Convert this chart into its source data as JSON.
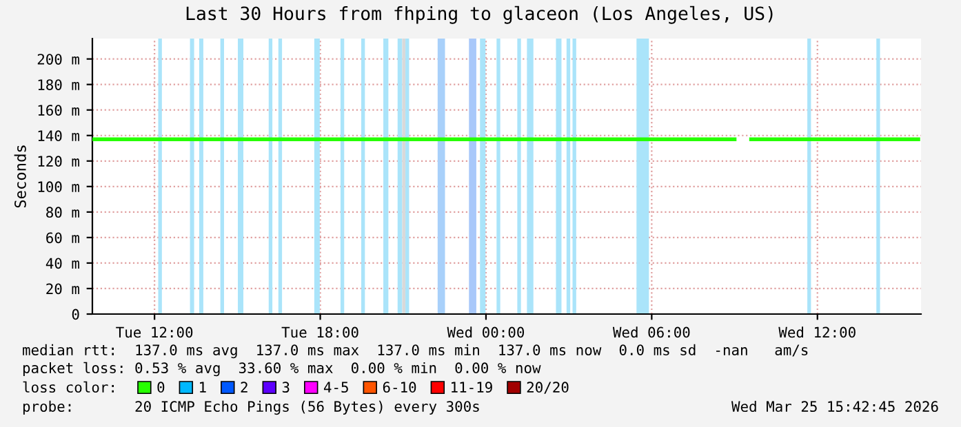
{
  "chart_data": {
    "type": "line",
    "title": "Last 30 Hours from fhping to glaceon (Los Angeles, US)",
    "ylabel": "Seconds",
    "xlim": [
      "2026-03-24T09:45",
      "2026-03-25T15:45"
    ],
    "xticks": [
      {
        "value": "2026-03-24T12:00",
        "label": "Tue 12:00"
      },
      {
        "value": "2026-03-24T18:00",
        "label": "Tue 18:00"
      },
      {
        "value": "2026-03-25T00:00",
        "label": "Wed 00:00"
      },
      {
        "value": "2026-03-25T06:00",
        "label": "Wed 06:00"
      },
      {
        "value": "2026-03-25T12:00",
        "label": "Wed 12:00"
      }
    ],
    "ylim": [
      0,
      216
    ],
    "yticks": [
      0,
      {
        "value": 20,
        "label": "20 m"
      },
      {
        "value": 40,
        "label": "40 m"
      },
      {
        "value": 60,
        "label": "60 m"
      },
      {
        "value": 80,
        "label": "80 m"
      },
      {
        "value": 100,
        "label": "100 m"
      },
      {
        "value": 120,
        "label": "120 m"
      },
      {
        "value": 140,
        "label": "140 m"
      },
      {
        "value": 160,
        "label": "160 m"
      },
      {
        "value": 180,
        "label": "180 m"
      },
      {
        "value": 200,
        "label": "200 m"
      }
    ],
    "grid": true,
    "legend": "bottom",
    "legend_title": "loss color:",
    "series": [
      {
        "name": "0",
        "color": "#26ff00",
        "x": [
          "2026-03-24T09:45",
          "2026-03-25T09:00",
          "2026-03-25T09:18",
          "2026-03-25T09:36",
          "2026-03-25T15:39"
        ],
        "values": [
          137,
          137,
          null,
          137,
          137
        ]
      },
      {
        "name": "1",
        "color": "#00b8ff"
      },
      {
        "name": "2",
        "color": "#0059ff"
      },
      {
        "name": "3",
        "color": "#5e00ff"
      },
      {
        "name": "4-5",
        "color": "#ff00ff"
      },
      {
        "name": "6-10",
        "color": "#ff5500"
      },
      {
        "name": "11-19",
        "color": "#ff0000"
      },
      {
        "name": "20/20",
        "color": "#a10000"
      }
    ],
    "bands": [
      {
        "axis": "x",
        "from": "2026-03-24T12:08",
        "to": "2026-03-24T12:16",
        "color": "#aae4fa"
      },
      {
        "axis": "x",
        "from": "2026-03-24T13:17",
        "to": "2026-03-24T13:26",
        "color": "#aae4fa"
      },
      {
        "axis": "x",
        "from": "2026-03-24T13:37",
        "to": "2026-03-24T13:46",
        "color": "#aae4fa"
      },
      {
        "axis": "x",
        "from": "2026-03-24T14:23",
        "to": "2026-03-24T14:31",
        "color": "#aae4fa"
      },
      {
        "axis": "x",
        "from": "2026-03-24T15:01",
        "to": "2026-03-24T15:13",
        "color": "#aae4fa"
      },
      {
        "axis": "x",
        "from": "2026-03-24T16:08",
        "to": "2026-03-24T16:16",
        "color": "#aae4fa"
      },
      {
        "axis": "x",
        "from": "2026-03-24T16:29",
        "to": "2026-03-24T16:37",
        "color": "#aae4fa"
      },
      {
        "axis": "x",
        "from": "2026-03-24T17:47",
        "to": "2026-03-24T17:59",
        "color": "#aae4fa"
      },
      {
        "axis": "x",
        "from": "2026-03-24T18:44",
        "to": "2026-03-24T18:52",
        "color": "#aae4fa"
      },
      {
        "axis": "x",
        "from": "2026-03-24T19:29",
        "to": "2026-03-24T19:37",
        "color": "#aae4fa"
      },
      {
        "axis": "x",
        "from": "2026-03-24T20:17",
        "to": "2026-03-24T20:28",
        "color": "#aae4fa"
      },
      {
        "axis": "x",
        "from": "2026-03-24T20:48",
        "to": "2026-03-24T20:58",
        "color": "#aae4fa"
      },
      {
        "axis": "x",
        "from": "2026-03-24T20:58",
        "to": "2026-03-24T21:05",
        "color": "#d9d9d9"
      },
      {
        "axis": "x",
        "from": "2026-03-24T21:05",
        "to": "2026-03-24T21:13",
        "color": "#aae4fa"
      },
      {
        "axis": "x",
        "from": "2026-03-24T22:15",
        "to": "2026-03-24T22:31",
        "color": "#a8d0fa"
      },
      {
        "axis": "x",
        "from": "2026-03-24T23:23",
        "to": "2026-03-24T23:39",
        "color": "#a8c8fa"
      },
      {
        "axis": "x",
        "from": "2026-03-24T23:47",
        "to": "2026-03-24T23:59",
        "color": "#aae4fa"
      },
      {
        "axis": "x",
        "from": "2026-03-25T00:23",
        "to": "2026-03-25T00:31",
        "color": "#aae4fa"
      },
      {
        "axis": "x",
        "from": "2026-03-25T01:08",
        "to": "2026-03-25T01:16",
        "color": "#aae4fa"
      },
      {
        "axis": "x",
        "from": "2026-03-25T01:29",
        "to": "2026-03-25T01:43",
        "color": "#aae4fa"
      },
      {
        "axis": "x",
        "from": "2026-03-25T02:32",
        "to": "2026-03-25T02:44",
        "color": "#aae4fa"
      },
      {
        "axis": "x",
        "from": "2026-03-25T02:55",
        "to": "2026-03-25T03:03",
        "color": "#aae4fa"
      },
      {
        "axis": "x",
        "from": "2026-03-25T03:08",
        "to": "2026-03-25T03:16",
        "color": "#aae4fa"
      },
      {
        "axis": "x",
        "from": "2026-03-25T05:27",
        "to": "2026-03-25T05:54",
        "color": "#aae4fa"
      },
      {
        "axis": "x",
        "from": "2026-03-25T11:38",
        "to": "2026-03-25T11:46",
        "color": "#aae4fa"
      },
      {
        "axis": "x",
        "from": "2026-03-25T14:08",
        "to": "2026-03-25T14:16",
        "color": "#aae4fa"
      }
    ],
    "annotations": [
      "median rtt:  137.0 ms avg  137.0 ms max  137.0 ms min  137.0 ms now  0.0 ms sd  -nan   am/s",
      "packet loss: 0.53 % avg  33.60 % max  0.00 % min  0.00 % now",
      "probe:       20 ICMP Echo Pings (56 Bytes) every 300s",
      "Wed Mar 25 15:42:45 2026"
    ]
  }
}
